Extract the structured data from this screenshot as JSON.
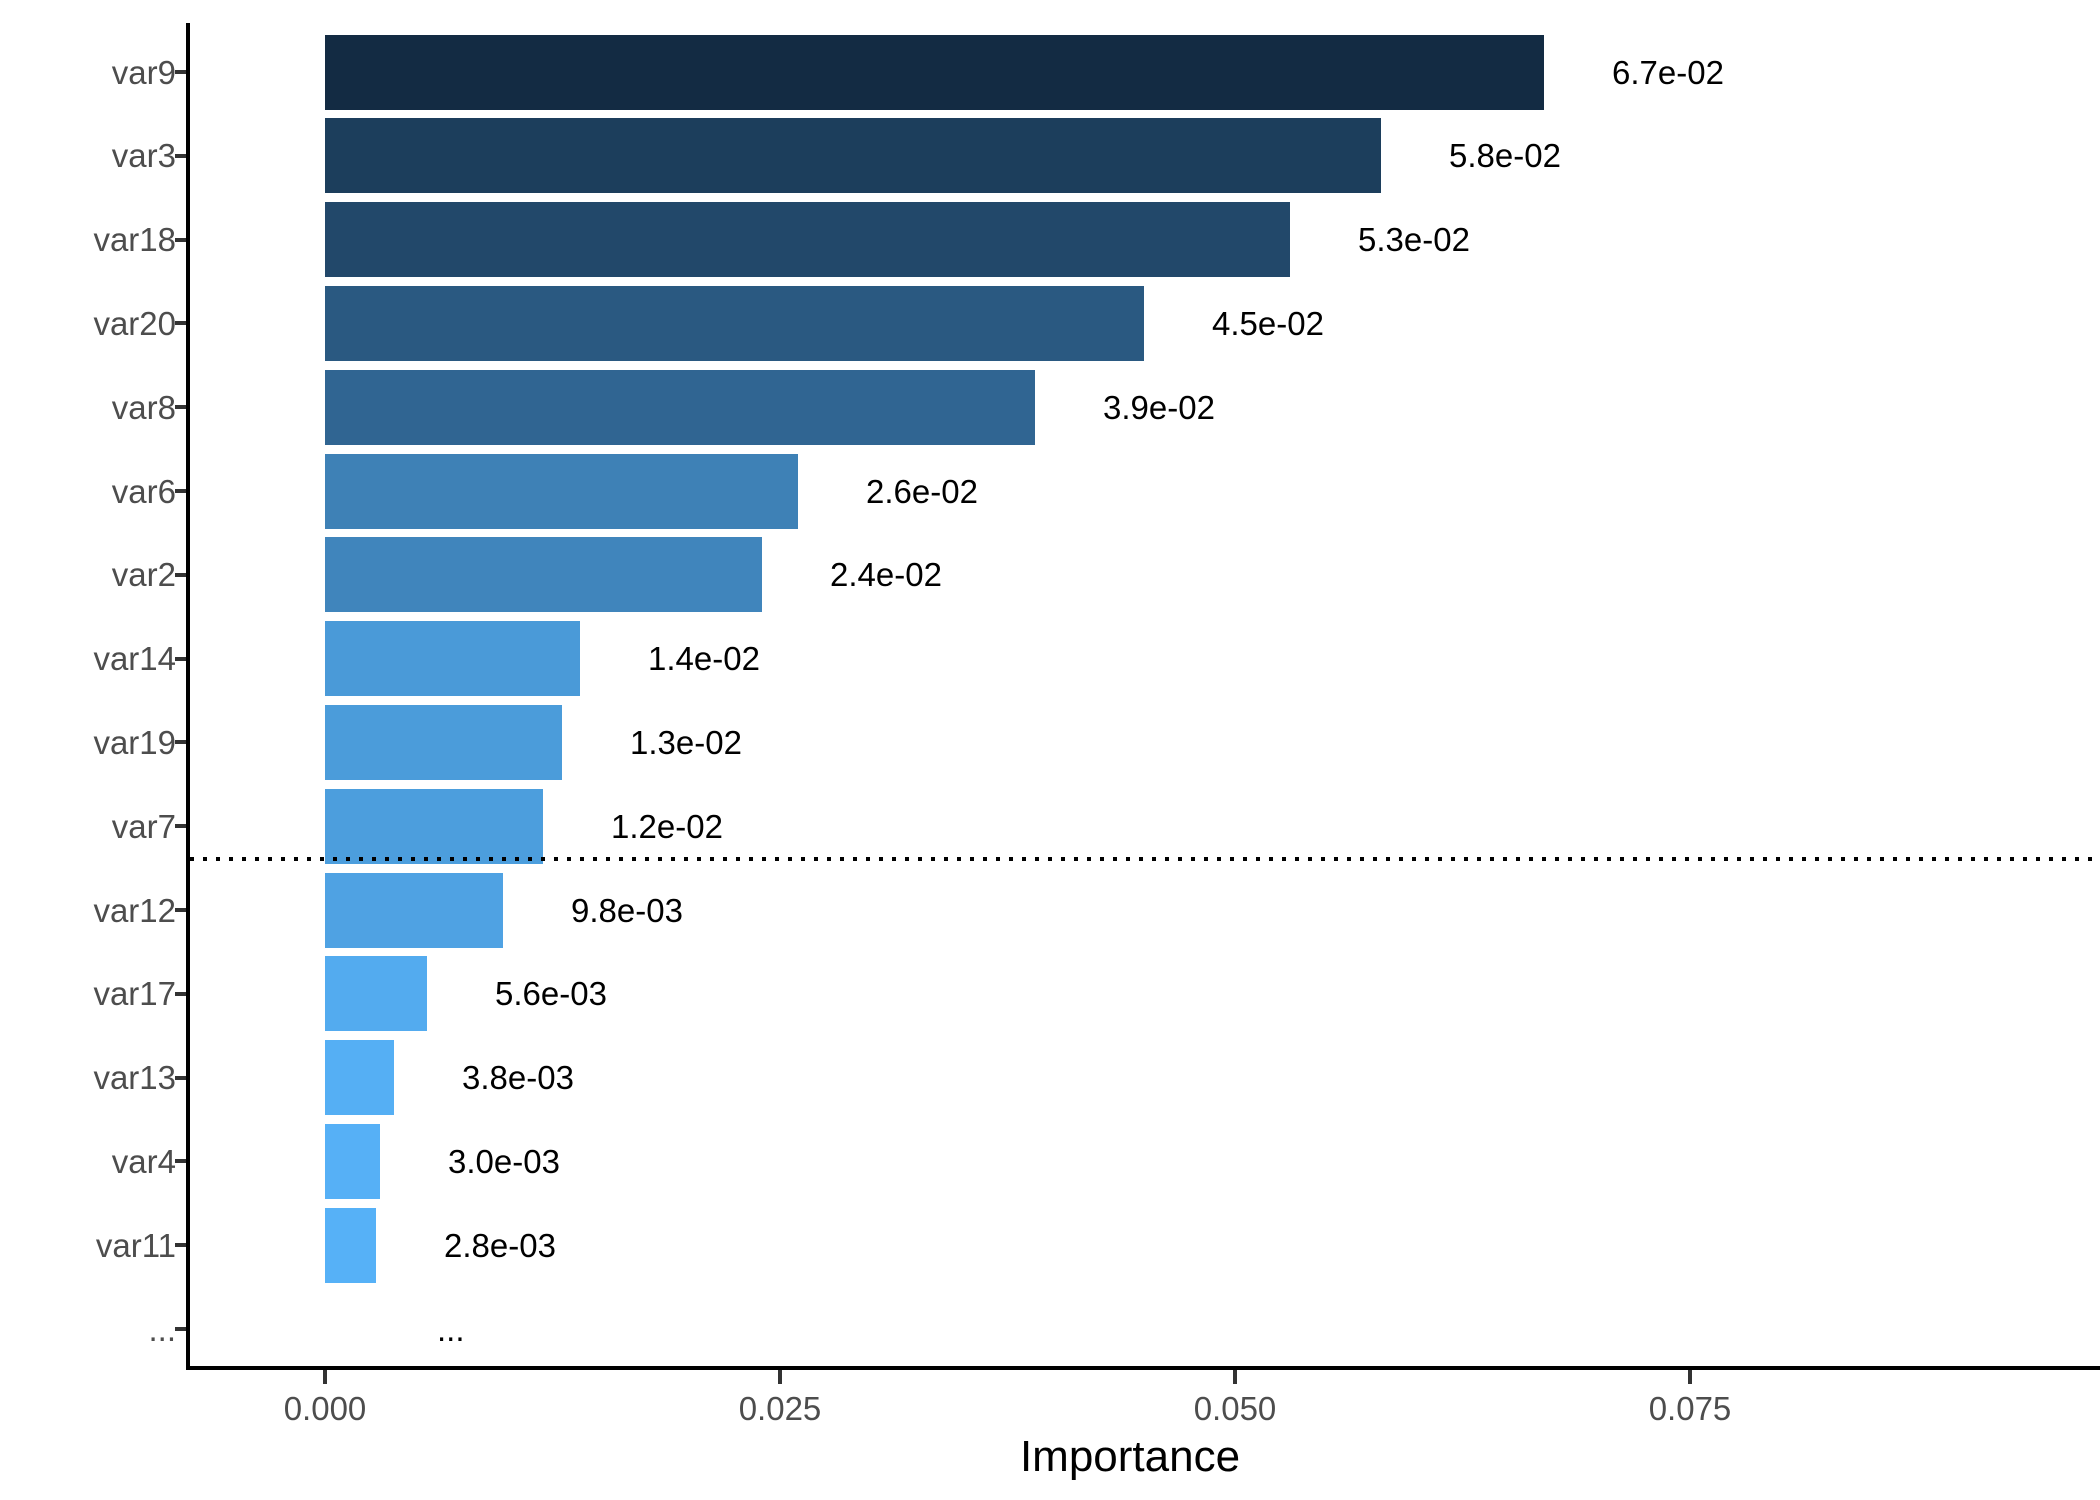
{
  "chart_data": {
    "type": "bar",
    "orientation": "horizontal",
    "title": "",
    "xlabel": "Importance",
    "ylabel": "",
    "grid": "off",
    "legend": "none",
    "xlim": [
      0,
      0.0975
    ],
    "x_ticks": {
      "values": [
        0.0,
        0.025,
        0.05,
        0.075
      ],
      "labels": [
        "0.000",
        "0.025",
        "0.050",
        "0.075"
      ]
    },
    "categories": [
      "var9",
      "var3",
      "var18",
      "var20",
      "var8",
      "var6",
      "var2",
      "var14",
      "var19",
      "var7",
      "var12",
      "var17",
      "var13",
      "var4",
      "var11",
      "..."
    ],
    "values": [
      0.067,
      0.058,
      0.053,
      0.045,
      0.039,
      0.026,
      0.024,
      0.014,
      0.013,
      0.012,
      0.0098,
      0.0056,
      0.0038,
      0.003,
      0.0028,
      null
    ],
    "value_labels": [
      "6.7e-02",
      "5.8e-02",
      "5.3e-02",
      "4.5e-02",
      "3.9e-02",
      "2.6e-02",
      "2.4e-02",
      "1.4e-02",
      "1.3e-02",
      "1.2e-02",
      "9.8e-03",
      "5.6e-03",
      "3.8e-03",
      "3.0e-03",
      "2.8e-03",
      "..."
    ],
    "bar_colors": [
      "#132B43",
      "#1C3E5C",
      "#22486A",
      "#2A5981",
      "#306592",
      "#3E81B6",
      "#4085BC",
      "#4A9AD8",
      "#4B9CDA",
      "#4C9EDD",
      "#4FA2E3",
      "#53ABEF",
      "#55AFF4",
      "#56B0F6",
      "#56B1F7"
    ],
    "color_scale": {
      "low_value_color": "#56B1F7",
      "high_value_color": "#132B43"
    },
    "threshold_line": {
      "style": "dotted",
      "color": "#000000",
      "between_categories": [
        "var7",
        "var12"
      ]
    },
    "axis_line_color": "#000000",
    "tick_color": "#333333",
    "axis_text_color": "#4d4d4d",
    "value_label_color": "#000000"
  }
}
